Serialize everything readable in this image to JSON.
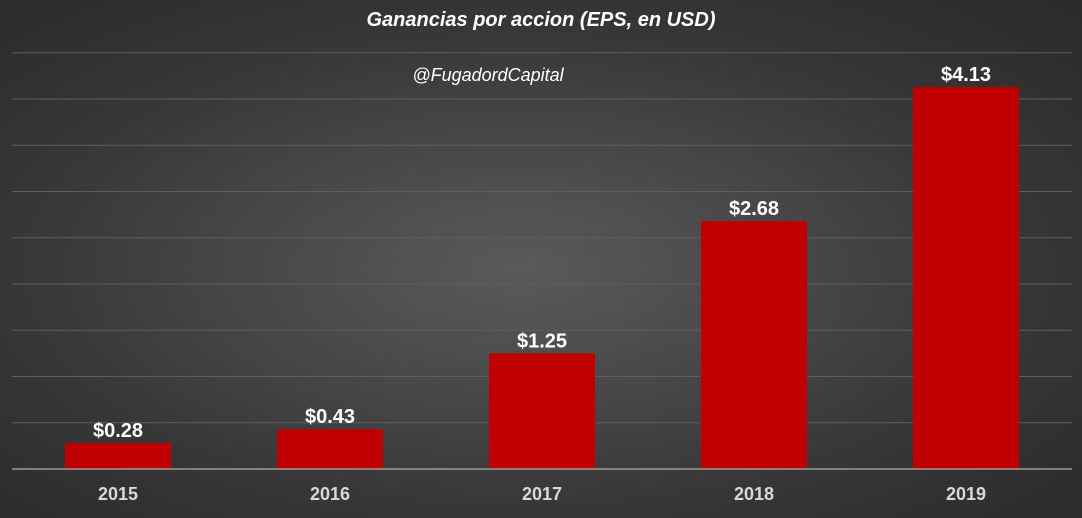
{
  "chart_data": {
    "type": "bar",
    "title": "Ganancias por accion (EPS, en USD)",
    "annotation": "@FugadordCapital",
    "categories": [
      "2015",
      "2016",
      "2017",
      "2018",
      "2019"
    ],
    "values": [
      0.28,
      0.43,
      1.25,
      2.68,
      4.13
    ],
    "data_labels": [
      "$0.28",
      "$0.43",
      "$1.25",
      "$2.68",
      "$4.13"
    ],
    "xlabel": "",
    "ylabel": "",
    "ylim": [
      0,
      4.5
    ],
    "grid": true,
    "legend": "none",
    "colors": {
      "bar": "#c00000",
      "background": "#404040",
      "text": "#ffffff"
    }
  }
}
